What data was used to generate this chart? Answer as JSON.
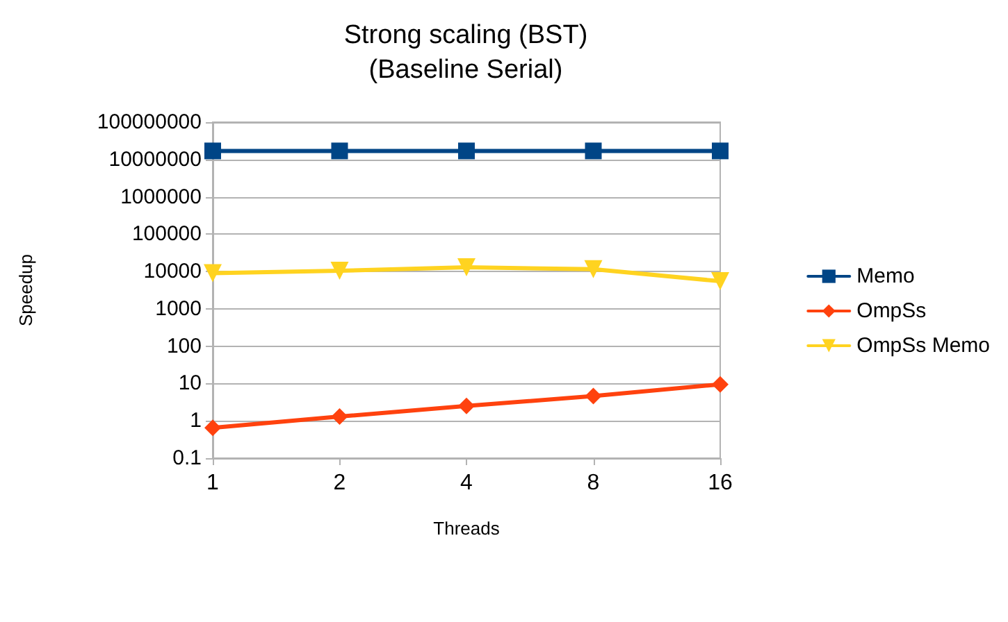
{
  "chart_data": {
    "type": "line",
    "title": "Strong scaling (BST)\n(Baseline Serial)",
    "xlabel": "Threads",
    "ylabel": "Speedup",
    "categories": [
      "1",
      "2",
      "4",
      "8",
      "16"
    ],
    "series": [
      {
        "name": "Memo",
        "color": "#004586",
        "marker": "square",
        "values": [
          17000000,
          17000000,
          17000000,
          17000000,
          17000000
        ]
      },
      {
        "name": "OmpSs",
        "color": "#ff420e",
        "marker": "diamond",
        "values": [
          0.65,
          1.3,
          2.5,
          4.6,
          9.5
        ]
      },
      {
        "name": "OmpSs Memo",
        "color": "#ffd320",
        "marker": "triangle",
        "values": [
          9000,
          10500,
          13000,
          11500,
          5500
        ]
      }
    ],
    "log": "y",
    "ylim": [
      0.1,
      100000000
    ],
    "yticks": [
      0.1,
      1,
      10,
      100,
      1000,
      10000,
      100000,
      1000000,
      10000000,
      100000000
    ],
    "grid": "y",
    "legend": "right",
    "line_style": "solid"
  }
}
